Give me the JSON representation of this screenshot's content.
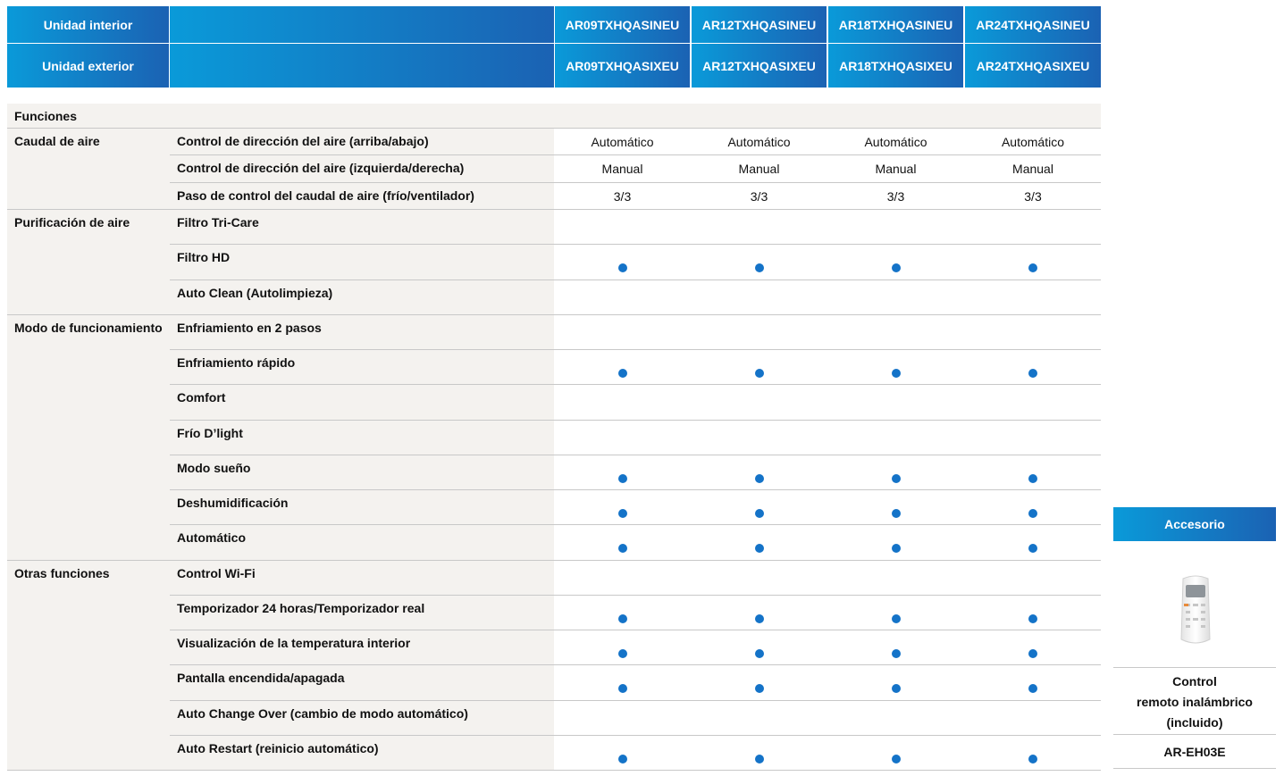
{
  "header": {
    "rows": [
      {
        "label": "Unidad interior",
        "models": [
          "AR09TXHQASINEU",
          "AR12TXHQASINEU",
          "AR18TXHQASINEU",
          "AR24TXHQASINEU"
        ]
      },
      {
        "label": "Unidad exterior",
        "models": [
          "AR09TXHQASIXEU",
          "AR12TXHQASIXEU",
          "AR18TXHQASIXEU",
          "AR24TXHQASIXEU"
        ]
      }
    ]
  },
  "table": {
    "section_title": "Funciones",
    "groups": [
      {
        "name": "Caudal de aire",
        "rows": [
          {
            "label": "Control de dirección del aire (arriba/abajo)",
            "values": [
              "Automático",
              "Automático",
              "Automático",
              "Automático"
            ]
          },
          {
            "label": "Control de dirección del aire (izquierda/derecha)",
            "values": [
              "Manual",
              "Manual",
              "Manual",
              "Manual"
            ]
          },
          {
            "label": "Paso de control del caudal de aire (frío/ventilador)",
            "values": [
              "3/3",
              "3/3",
              "3/3",
              "3/3"
            ]
          }
        ]
      },
      {
        "name": "Purificación de aire",
        "rows": [
          {
            "label": "Filtro Tri-Care"
          },
          {
            "label": "Filtro HD",
            "dots": true
          },
          {
            "label": "Auto Clean (Autolimpieza)"
          }
        ]
      },
      {
        "name": "Modo de funcionamiento",
        "rows": [
          {
            "label": "Enfriamiento en 2 pasos"
          },
          {
            "label": "Enfriamiento rápido",
            "dots": true
          },
          {
            "label": "Comfort"
          },
          {
            "label": "Frío D’light"
          },
          {
            "label": "Modo sueño",
            "dots": true
          },
          {
            "label": "Deshumidificación",
            "dots": true
          },
          {
            "label": "Automático",
            "dots": true
          }
        ]
      },
      {
        "name": "Otras funciones",
        "rows": [
          {
            "label": "Control Wi-Fi"
          },
          {
            "label": "Temporizador 24 horas/Temporizador real",
            "dots": true
          },
          {
            "label": "Visualización de la temperatura interior",
            "dots": true
          },
          {
            "label": "Pantalla encendida/apagada",
            "dots": true
          },
          {
            "label": "Auto Change Over (cambio de modo automático)"
          },
          {
            "label": "Auto Restart (reinicio automático)",
            "dots": true
          }
        ]
      }
    ]
  },
  "accessory": {
    "title": "Accesorio",
    "name_lines": [
      "Control",
      "remoto inalámbrico",
      "(incluido)"
    ],
    "model": "AR-EH03E"
  }
}
